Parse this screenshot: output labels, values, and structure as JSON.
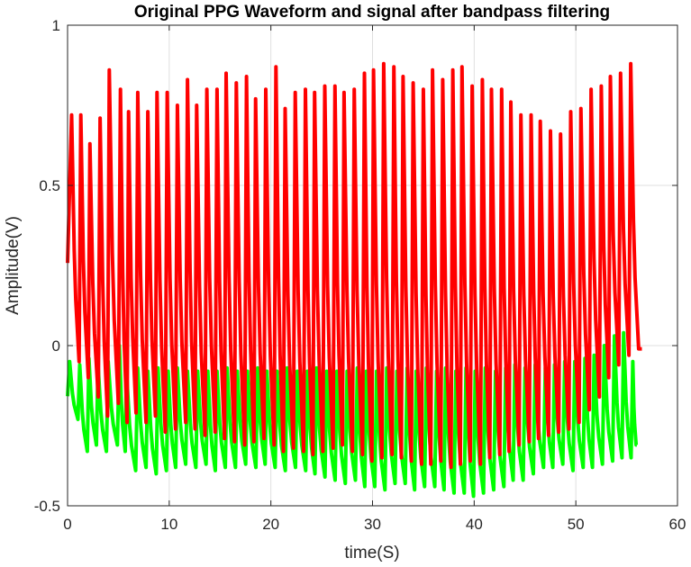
{
  "chart_data": {
    "type": "line",
    "title": "Original PPG Waveform and signal after bandpass filtering",
    "xlabel": "time(S)",
    "ylabel": "Amplitude(V)",
    "xlim": [
      0,
      60
    ],
    "ylim": [
      -0.5,
      1
    ],
    "xticks": [
      "0",
      "10",
      "20",
      "30",
      "40",
      "50",
      "60"
    ],
    "yticks": [
      "-0.5",
      "0",
      "0.5",
      "1"
    ],
    "grid": true,
    "series": [
      {
        "color": "#00ff00",
        "t_start": 0,
        "t_end": 56,
        "beat_times": [
          0.2,
          1.2,
          2.1,
          3.0,
          4.0,
          5.1,
          5.8,
          6.9,
          7.9,
          8.9,
          9.9,
          10.8,
          11.8,
          12.8,
          13.8,
          14.7,
          15.7,
          16.7,
          17.7,
          18.7,
          19.6,
          20.6,
          21.6,
          22.6,
          23.6,
          24.5,
          25.5,
          26.5,
          27.5,
          28.5,
          29.4,
          30.4,
          31.4,
          32.4,
          33.4,
          34.3,
          35.3,
          36.3,
          37.2,
          38.2,
          39.2,
          40.1,
          41.1,
          42.1,
          43.1,
          44.0,
          45.0,
          46.0,
          47.0,
          47.9,
          48.9,
          49.9,
          50.9,
          51.8,
          52.8,
          53.8,
          54.7,
          55.6
        ],
        "peaks": [
          -0.05,
          -0.06,
          -0.04,
          -0.06,
          -0.05,
          0.0,
          -0.08,
          -0.07,
          -0.08,
          -0.07,
          -0.08,
          -0.07,
          -0.08,
          -0.08,
          -0.08,
          -0.08,
          -0.07,
          -0.08,
          -0.08,
          -0.07,
          -0.08,
          -0.08,
          -0.07,
          -0.08,
          -0.08,
          -0.07,
          -0.08,
          -0.08,
          -0.08,
          -0.07,
          -0.08,
          -0.08,
          -0.07,
          -0.08,
          -0.07,
          -0.08,
          -0.07,
          -0.08,
          -0.07,
          -0.08,
          -0.07,
          -0.08,
          -0.07,
          -0.08,
          -0.07,
          -0.06,
          -0.07,
          -0.06,
          -0.07,
          -0.06,
          -0.05,
          -0.05,
          -0.04,
          -0.03,
          0.0,
          0.03,
          0.04,
          -0.05
        ],
        "troughs": [
          -0.23,
          -0.33,
          -0.31,
          -0.33,
          -0.31,
          -0.33,
          -0.39,
          -0.38,
          -0.4,
          -0.39,
          -0.38,
          -0.37,
          -0.38,
          -0.37,
          -0.39,
          -0.38,
          -0.38,
          -0.37,
          -0.38,
          -0.37,
          -0.38,
          -0.39,
          -0.38,
          -0.39,
          -0.4,
          -0.41,
          -0.42,
          -0.43,
          -0.42,
          -0.44,
          -0.44,
          -0.45,
          -0.43,
          -0.43,
          -0.45,
          -0.44,
          -0.44,
          -0.45,
          -0.46,
          -0.46,
          -0.47,
          -0.46,
          -0.45,
          -0.44,
          -0.42,
          -0.42,
          -0.4,
          -0.38,
          -0.38,
          -0.37,
          -0.39,
          -0.38,
          -0.38,
          -0.37,
          -0.36,
          -0.35,
          -0.35,
          -0.31
        ]
      },
      {
        "color": "#ff0000",
        "t_start": 0,
        "t_end": 56.5,
        "beat_times": [
          0.4,
          1.3,
          2.2,
          3.2,
          4.1,
          5.2,
          6.0,
          6.9,
          7.9,
          8.8,
          9.8,
          10.8,
          11.8,
          12.7,
          13.7,
          14.7,
          15.6,
          16.6,
          17.6,
          18.5,
          19.5,
          20.5,
          21.4,
          22.4,
          23.4,
          24.3,
          25.3,
          26.3,
          27.2,
          28.2,
          29.2,
          30.1,
          31.1,
          32.1,
          33.0,
          34.0,
          35.0,
          35.9,
          36.9,
          37.9,
          38.8,
          39.8,
          40.8,
          41.7,
          42.7,
          43.6,
          44.6,
          45.6,
          46.5,
          47.5,
          48.5,
          49.5,
          50.5,
          51.5,
          52.5,
          53.4,
          54.4,
          55.4
        ],
        "peaks": [
          0.72,
          0.72,
          0.63,
          0.71,
          0.86,
          0.8,
          0.73,
          0.79,
          0.73,
          0.79,
          0.79,
          0.75,
          0.83,
          0.75,
          0.8,
          0.8,
          0.85,
          0.82,
          0.84,
          0.77,
          0.8,
          0.87,
          0.74,
          0.79,
          0.8,
          0.79,
          0.81,
          0.81,
          0.79,
          0.8,
          0.85,
          0.86,
          0.88,
          0.87,
          0.84,
          0.82,
          0.8,
          0.86,
          0.83,
          0.86,
          0.87,
          0.81,
          0.83,
          0.8,
          0.8,
          0.76,
          0.72,
          0.72,
          0.7,
          0.67,
          0.66,
          0.73,
          0.74,
          0.8,
          0.81,
          0.84,
          0.85,
          0.88
        ],
        "troughs": [
          -0.05,
          -0.1,
          -0.16,
          -0.22,
          -0.18,
          -0.24,
          -0.21,
          -0.24,
          -0.22,
          -0.27,
          -0.26,
          -0.24,
          -0.26,
          -0.28,
          -0.27,
          -0.29,
          -0.3,
          -0.31,
          -0.3,
          -0.29,
          -0.31,
          -0.33,
          -0.32,
          -0.33,
          -0.34,
          -0.33,
          -0.32,
          -0.31,
          -0.33,
          -0.34,
          -0.36,
          -0.35,
          -0.34,
          -0.35,
          -0.36,
          -0.37,
          -0.37,
          -0.36,
          -0.38,
          -0.37,
          -0.36,
          -0.37,
          -0.35,
          -0.34,
          -0.33,
          -0.31,
          -0.3,
          -0.29,
          -0.28,
          -0.27,
          -0.26,
          -0.24,
          -0.2,
          -0.16,
          -0.1,
          -0.06,
          -0.03,
          -0.01
        ]
      }
    ]
  }
}
